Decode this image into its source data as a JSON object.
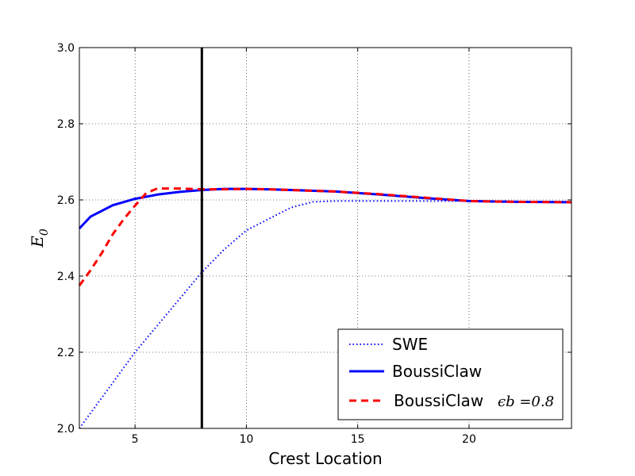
{
  "chart_data": {
    "type": "line",
    "xlabel": "Crest Location",
    "ylabel_main": "E",
    "ylabel_sub": "0",
    "xlim": [
      2.5,
      24.6
    ],
    "ylim": [
      2.0,
      3.0
    ],
    "xticks": [
      5,
      10,
      15,
      20
    ],
    "yticks": [
      2.0,
      2.2,
      2.4,
      2.6,
      2.8,
      3.0
    ],
    "xtick_labels": [
      "5",
      "10",
      "15",
      "20"
    ],
    "ytick_labels": [
      "2.0",
      "2.2",
      "2.4",
      "2.6",
      "2.8",
      "3.0"
    ],
    "grid": true,
    "legend_position": "lower-right",
    "vline_x": 8.0,
    "series": [
      {
        "name": "SWE",
        "color": "#0000ff",
        "style": "dotted",
        "x": [
          2.5,
          3,
          4,
          5,
          6,
          7,
          8,
          9,
          10,
          11,
          12,
          13,
          14,
          16,
          18,
          20,
          22,
          24.6
        ],
        "y": [
          2.0,
          2.04,
          2.12,
          2.2,
          2.27,
          2.34,
          2.41,
          2.47,
          2.52,
          2.55,
          2.58,
          2.595,
          2.597,
          2.597,
          2.597,
          2.597,
          2.596,
          2.595
        ]
      },
      {
        "name": "BoussiClaw",
        "color": "#0000ff",
        "style": "solid",
        "x": [
          2.5,
          3,
          4,
          5,
          6,
          7,
          8,
          9,
          10,
          11,
          12,
          14,
          16,
          18,
          20,
          22,
          24.6
        ],
        "y": [
          2.525,
          2.556,
          2.586,
          2.603,
          2.614,
          2.621,
          2.626,
          2.629,
          2.629,
          2.628,
          2.626,
          2.622,
          2.614,
          2.605,
          2.597,
          2.595,
          2.594
        ]
      },
      {
        "name": "BoussiClaw",
        "name_math": "ϵb =0.8",
        "color": "#ff0000",
        "style": "dashed",
        "x": [
          2.5,
          3,
          3.5,
          4,
          4.5,
          5,
          5.5,
          6,
          7,
          8,
          9,
          10,
          11,
          12,
          14,
          16,
          18,
          20,
          22,
          24.6
        ],
        "y": [
          2.375,
          2.415,
          2.46,
          2.51,
          2.55,
          2.585,
          2.618,
          2.63,
          2.63,
          2.628,
          2.628,
          2.629,
          2.628,
          2.626,
          2.622,
          2.615,
          2.606,
          2.597,
          2.595,
          2.594
        ]
      }
    ]
  }
}
